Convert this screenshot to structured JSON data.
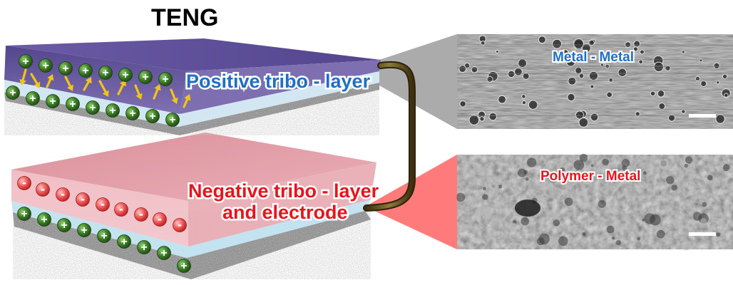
{
  "title": "TENG",
  "top_layer": {
    "label": "Positive tribo - layer"
  },
  "bottom_layer": {
    "label_line1": "Negative tribo - layer",
    "label_line2": "and electrode"
  },
  "sem_top": {
    "label": "Metal - Metal"
  },
  "sem_bottom": {
    "label": "Polymer - Metal"
  },
  "charges": {
    "positive": "+",
    "negative": "-"
  },
  "colors": {
    "positive_label": "#1f6fc6",
    "negative_label": "#e8141b",
    "top_slab": "#5b4a93",
    "bottom_slab": "#e7a9b1",
    "positive_charge": "#3f7f2a",
    "negative_charge": "#e8474a",
    "arrow": "#f0c419",
    "wire": "#5e4a1e"
  }
}
